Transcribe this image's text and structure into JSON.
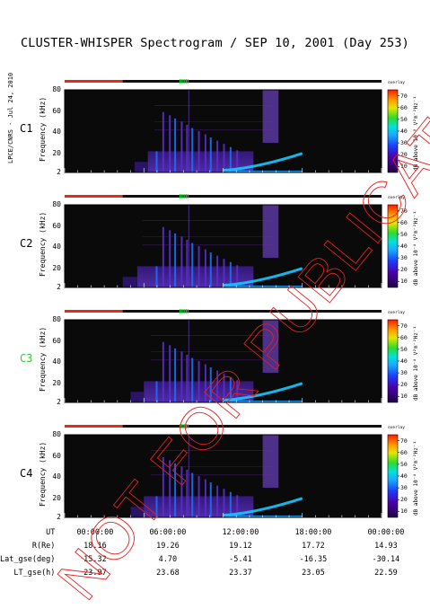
{
  "title": "CLUSTER-WHISPER Spectrogram / SEP 10, 2001 (Day 253)",
  "side_credit": "LPCE/CNRS - Jul 24, 2010",
  "stamp": "NOT FOR PUBLICATION",
  "colors": {
    "status_red": "#e8281e",
    "status_dark": "#111111",
    "status_green": "#22d43a",
    "stamp_red": "#e32020",
    "c3_label": "#33cc33"
  },
  "chart_data": [
    {
      "type": "heatmap",
      "panel": "C1",
      "ylabel": "Frequency (kHz)",
      "yticks": [
        "80",
        "60",
        "40",
        "20",
        "2"
      ],
      "ylim": [
        2,
        80
      ],
      "xlim": [
        "00:00:00",
        "24:00:00"
      ],
      "colorbar": {
        "label": "dB above 10⁻⁸ V²m⁻²Hz⁻¹",
        "ticks": [
          70,
          60,
          50,
          40,
          30,
          20,
          10
        ],
        "note": "overlay"
      },
      "features": {
        "data_start_h": 5.3,
        "dense_start_h": 6.3,
        "data_end_h": 14.3,
        "curve_end_h": 18.0
      }
    },
    {
      "type": "heatmap",
      "panel": "C2",
      "ylabel": "Frequency (kHz)",
      "yticks": [
        "80",
        "60",
        "40",
        "20",
        "2"
      ],
      "ylim": [
        2,
        80
      ],
      "xlim": [
        "00:00:00",
        "24:00:00"
      ],
      "colorbar": {
        "label": "dB above 10⁻⁸ V²m⁻²Hz⁻¹",
        "ticks": [
          70,
          60,
          50,
          40,
          30,
          20,
          10
        ],
        "note": "overlay"
      },
      "features": {
        "data_start_h": 4.4,
        "dense_start_h": 5.5,
        "data_end_h": 14.3,
        "curve_end_h": 18.0
      }
    },
    {
      "type": "heatmap",
      "panel": "C3",
      "ylabel": "Frequency (kHz)",
      "yticks": [
        "80",
        "60",
        "40",
        "20",
        "2"
      ],
      "ylim": [
        2,
        80
      ],
      "xlim": [
        "00:00:00",
        "24:00:00"
      ],
      "colorbar": {
        "label": "dB above 10⁻⁸ V²m⁻²Hz⁻¹",
        "ticks": [
          70,
          60,
          50,
          40,
          30,
          20,
          10
        ],
        "note": "overlay"
      },
      "features": {
        "data_start_h": 5.0,
        "dense_start_h": 6.0,
        "data_end_h": 14.3,
        "curve_end_h": 18.0
      }
    },
    {
      "type": "heatmap",
      "panel": "C4",
      "ylabel": "Frequency (kHz)",
      "yticks": [
        "80",
        "60",
        "40",
        "20",
        "2"
      ],
      "ylim": [
        2,
        80
      ],
      "xlim": [
        "00:00:00",
        "24:00:00"
      ],
      "colorbar": {
        "label": "dB above 10⁻⁸ V²m⁻²Hz⁻¹",
        "ticks": [
          70,
          60,
          50,
          40,
          30,
          20,
          10
        ],
        "note": "overlay"
      },
      "features": {
        "data_start_h": 5.0,
        "dense_start_h": 6.0,
        "data_end_h": 14.3,
        "curve_end_h": 18.0
      }
    }
  ],
  "status_bars": [
    {
      "red_end_h": 4.4,
      "green_h": [
        8.7,
        9.3
      ]
    },
    {
      "red_end_h": 4.4,
      "green_h": [
        8.7,
        9.3
      ]
    },
    {
      "red_end_h": 4.4,
      "green_h": [
        8.7,
        9.3
      ]
    },
    {
      "red_end_h": 4.4,
      "green_h": [
        8.7,
        9.3
      ]
    }
  ],
  "ephemeris": {
    "rows": [
      {
        "label": "UT",
        "values": [
          "00:00:00",
          "06:00:00",
          "12:00:00",
          "18:00:00",
          "00:00:00"
        ]
      },
      {
        "label": "R(Re)",
        "values": [
          "18.16",
          "19.26",
          "19.12",
          "17.72",
          "14.93"
        ]
      },
      {
        "label": "Lat_gse(deg)",
        "values": [
          "15.32",
          "4.70",
          "-5.41",
          "-16.35",
          "-30.14"
        ]
      },
      {
        "label": "LT_gse(h)",
        "values": [
          "23.97",
          "23.68",
          "23.37",
          "23.05",
          "22.59"
        ]
      }
    ]
  }
}
